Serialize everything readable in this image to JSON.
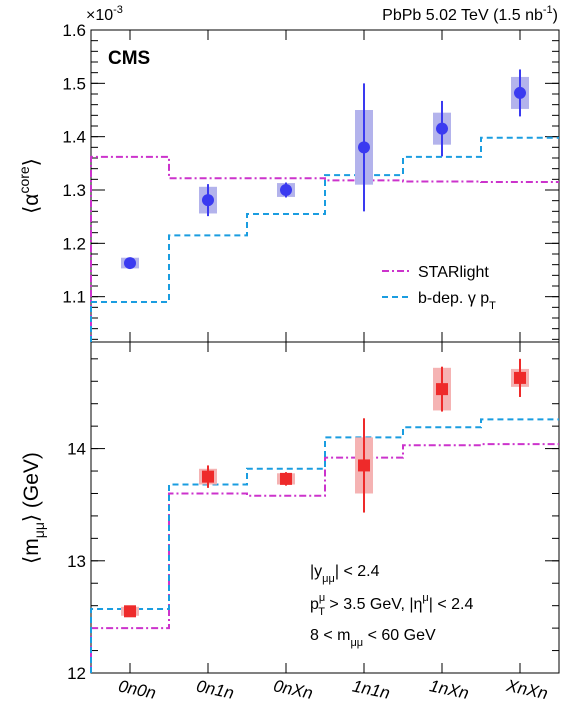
{
  "chart_data": [
    {
      "type": "scatter",
      "header": "PbPb 5.02 TeV (1.5 nb",
      "header_sup": "-1",
      "header_close": ")",
      "experiment": "CMS",
      "multiplier": "×10",
      "multiplier_exp": "-3",
      "ylabel_main": "⟨α",
      "ylabel_sup": "core",
      "ylabel_close": "⟩",
      "ylim": [
        1.015,
        1.6
      ],
      "yticks": [
        "1.1",
        "1.2",
        "1.3",
        "1.4",
        "1.5",
        "1.6"
      ],
      "ytick_values": [
        1.1,
        1.2,
        1.3,
        1.4,
        1.5,
        1.6
      ],
      "categories": [
        "0n0n",
        "0n1n",
        "0nXn",
        "1n1n",
        "1nXn",
        "XnXn"
      ],
      "data": {
        "values": [
          1.163,
          1.281,
          1.3,
          1.38,
          1.415,
          1.482
        ],
        "stat_err": [
          0.007,
          0.03,
          0.014,
          0.12,
          0.052,
          0.044
        ],
        "syst_err": [
          0.01,
          0.025,
          0.013,
          0.07,
          0.03,
          0.03
        ],
        "color": "#3a3af0",
        "box_color": "#b3b3ec"
      },
      "series": [
        {
          "name": "STARlight",
          "values": [
            1.362,
            1.322,
            1.322,
            1.318,
            1.316,
            1.315
          ],
          "color": "#cc33cc",
          "style": "dash-dot"
        },
        {
          "name": "b-dep. γ p",
          "name_sub": "T",
          "values": [
            1.09,
            1.215,
            1.255,
            1.328,
            1.362,
            1.398
          ],
          "color": "#1a9de0",
          "style": "dash"
        }
      ]
    },
    {
      "type": "scatter",
      "ylabel_main": "⟨m",
      "ylabel_sub": "μμ",
      "ylabel_close": "⟩ (GeV)",
      "ylim": [
        12,
        14.95
      ],
      "yticks": [
        "12",
        "13",
        "14"
      ],
      "ytick_values": [
        12,
        13,
        14
      ],
      "categories": [
        "0n0n",
        "0n1n",
        "0nXn",
        "1n1n",
        "1nXn",
        "XnXn"
      ],
      "data": {
        "values": [
          12.55,
          13.75,
          13.73,
          13.85,
          14.53,
          14.63
        ],
        "stat_err": [
          0.03,
          0.1,
          0.06,
          0.42,
          0.2,
          0.17
        ],
        "syst_err": [
          0.04,
          0.07,
          0.05,
          0.25,
          0.19,
          0.08
        ],
        "color": "#ee2a2a",
        "box_color": "#f5b3b3"
      },
      "series": [
        {
          "name": "STARlight",
          "values": [
            12.4,
            13.6,
            13.58,
            13.92,
            14.03,
            14.04
          ],
          "color": "#cc33cc",
          "style": "dash-dot"
        },
        {
          "name": "b-dep. γ p",
          "values": [
            12.57,
            13.68,
            13.82,
            14.1,
            14.19,
            14.26
          ],
          "color": "#1a9de0",
          "style": "dash"
        }
      ],
      "cuts": [
        {
          "main": "|y",
          "sub": "μμ",
          "rest": "| < 2.4"
        },
        {
          "main": "p",
          "sup": "μ",
          "sub": "T",
          "rest": " > 3.5 GeV, |η",
          "sup2": "μ",
          "rest2": "| < 2.4"
        },
        {
          "main": "8 < m",
          "sub": "μμ",
          "rest": " < 60 GeV"
        }
      ]
    }
  ]
}
